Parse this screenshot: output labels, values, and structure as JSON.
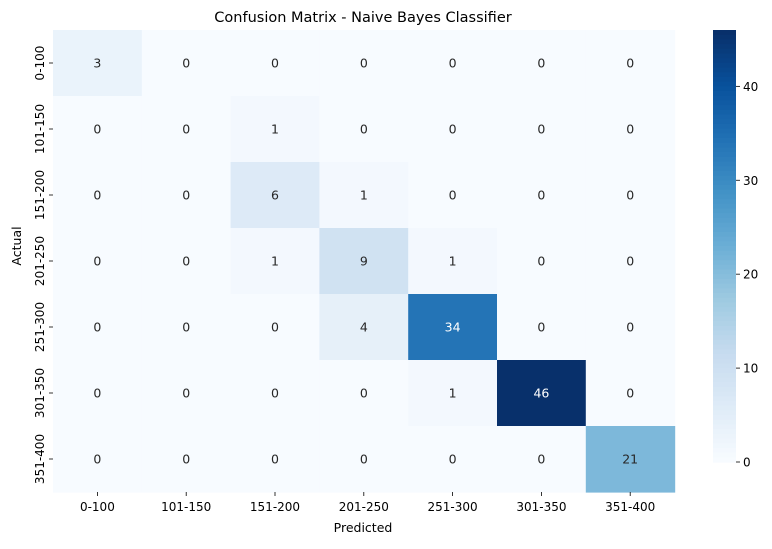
{
  "chart_data": {
    "type": "heatmap",
    "title": "Confusion Matrix - Naive Bayes Classifier",
    "xlabel": "Predicted",
    "ylabel": "Actual",
    "x_categories": [
      "0-100",
      "101-150",
      "151-200",
      "201-250",
      "251-300",
      "301-350",
      "351-400"
    ],
    "y_categories": [
      "0-100",
      "101-150",
      "151-200",
      "201-250",
      "251-300",
      "301-350",
      "351-400"
    ],
    "values": [
      [
        3,
        0,
        0,
        0,
        0,
        0,
        0
      ],
      [
        0,
        0,
        1,
        0,
        0,
        0,
        0
      ],
      [
        0,
        0,
        6,
        1,
        0,
        0,
        0
      ],
      [
        0,
        0,
        1,
        9,
        1,
        0,
        0
      ],
      [
        0,
        0,
        0,
        4,
        34,
        0,
        0
      ],
      [
        0,
        0,
        0,
        0,
        1,
        46,
        0
      ],
      [
        0,
        0,
        0,
        0,
        0,
        0,
        21
      ]
    ],
    "colorbar": {
      "min": 0,
      "max": 46,
      "ticks": [
        0,
        10,
        20,
        30,
        40
      ],
      "colormap": "Blues"
    }
  }
}
